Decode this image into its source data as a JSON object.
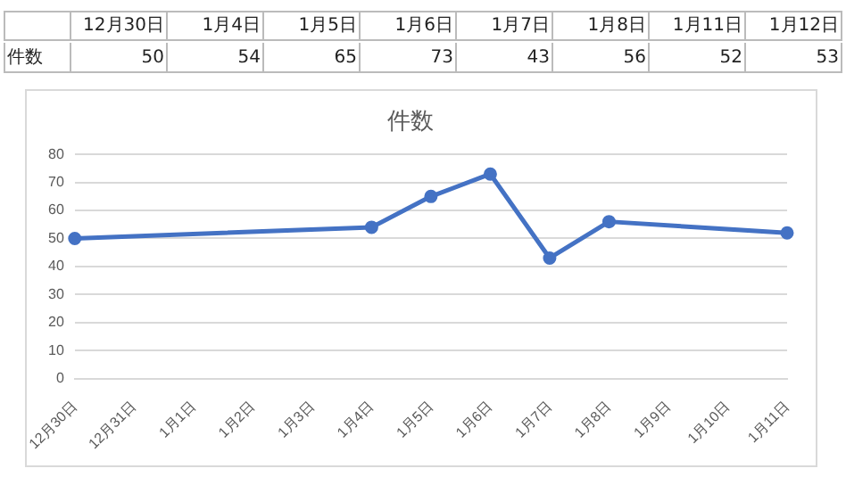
{
  "chart_data": [
    {
      "type": "other",
      "ylabel": "件数",
      "categories": [
        "12月30日",
        "1月4日",
        "1月5日",
        "1月6日",
        "1月7日",
        "1月8日",
        "1月11日",
        "1月12日"
      ],
      "values": [
        50,
        54,
        65,
        73,
        43,
        56,
        52,
        53
      ],
      "data_labels": true
    },
    {
      "type": "line",
      "title": "件数",
      "categories": [
        "12月30日",
        "12月31日",
        "1月1日",
        "1月2日",
        "1月3日",
        "1月4日",
        "1月5日",
        "1月6日",
        "1月7日",
        "1月8日",
        "1月9日",
        "1月10日",
        "1月11日"
      ],
      "series": [
        {
          "color": "#4472c4",
          "values": [
            50,
            null,
            null,
            null,
            null,
            54,
            65,
            73,
            43,
            56,
            null,
            null,
            52
          ]
        }
      ],
      "ylim": [
        0,
        80
      ],
      "yticks": [
        0,
        10,
        20,
        30,
        40,
        50,
        60,
        70,
        80
      ],
      "grid": "y",
      "marker": "circle",
      "legend": false
    }
  ]
}
